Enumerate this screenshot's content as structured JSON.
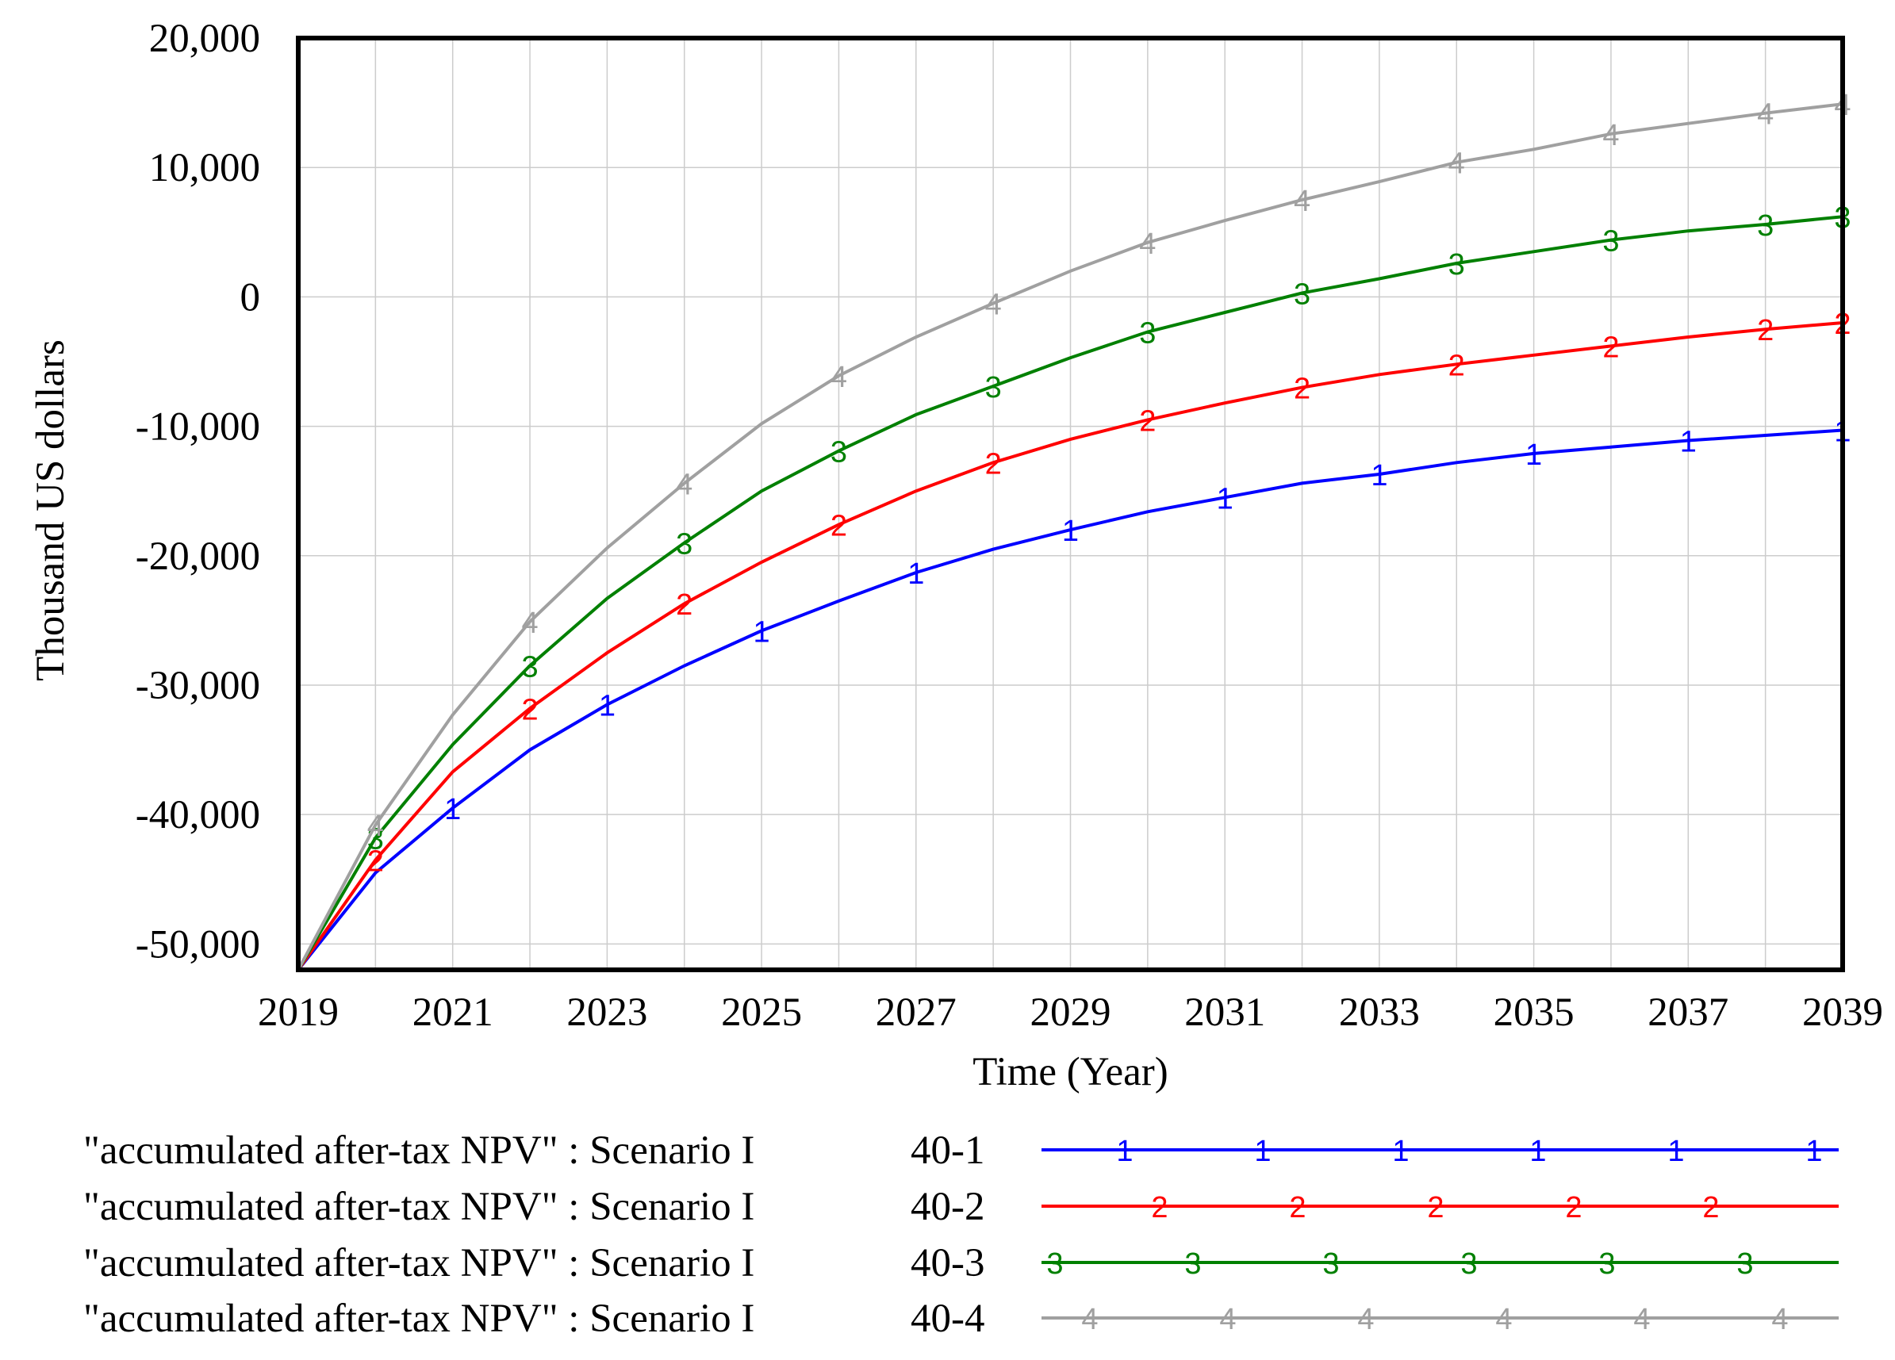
{
  "chart_data": {
    "type": "line",
    "title": "",
    "xlabel": "Time (Year)",
    "ylabel": "Thousand US dollars",
    "xlim": [
      2019,
      2039
    ],
    "ylim": [
      -52000,
      20000
    ],
    "grid": true,
    "x_ticks": [
      "2019",
      "2021",
      "2023",
      "2025",
      "2027",
      "2029",
      "2031",
      "2033",
      "2035",
      "2037",
      "2039"
    ],
    "y_ticks": [
      "20,000",
      "10,000",
      "0",
      "-10,000",
      "-20,000",
      "-30,000",
      "-40,000",
      "-50,000"
    ],
    "x": [
      2019,
      2020,
      2021,
      2022,
      2023,
      2024,
      2025,
      2026,
      2027,
      2028,
      2029,
      2030,
      2031,
      2032,
      2033,
      2034,
      2035,
      2036,
      2037,
      2038,
      2039
    ],
    "series": [
      {
        "name": "\"accumulated after-tax NPV\" : Scenario I",
        "scenario": "40-1",
        "marker": "1",
        "color": "#0000ff",
        "values": [
          -52000,
          -44500,
          -39500,
          -35000,
          -31500,
          -28500,
          -25800,
          -23500,
          -21300,
          -19500,
          -18000,
          -16600,
          -15500,
          -14400,
          -13700,
          -12800,
          -12100,
          -11600,
          -11100,
          -10700,
          -10300
        ]
      },
      {
        "name": "\"accumulated after-tax NPV\" : Scenario I",
        "scenario": "40-2",
        "marker": "2",
        "color": "#ff0000",
        "values": [
          -52000,
          -43500,
          -36700,
          -31800,
          -27500,
          -23700,
          -20500,
          -17600,
          -15000,
          -12800,
          -11000,
          -9500,
          -8200,
          -7000,
          -6000,
          -5200,
          -4500,
          -3800,
          -3100,
          -2500,
          -2000
        ]
      },
      {
        "name": "\"accumulated after-tax NPV\" : Scenario I",
        "scenario": "40-3",
        "marker": "3",
        "color": "#008000",
        "values": [
          -52000,
          -41800,
          -34600,
          -28500,
          -23300,
          -19000,
          -15000,
          -11900,
          -9100,
          -6900,
          -4700,
          -2700,
          -1200,
          300,
          1400,
          2600,
          3500,
          4400,
          5100,
          5600,
          6200
        ]
      },
      {
        "name": "\"accumulated after-tax NPV\" : Scenario I",
        "scenario": "40-4",
        "marker": "4",
        "color": "#a0a0a0",
        "values": [
          -52000,
          -40800,
          -32300,
          -25100,
          -19400,
          -14400,
          -9800,
          -6100,
          -3100,
          -500,
          2000,
          4200,
          5900,
          7500,
          8900,
          10400,
          11400,
          12600,
          13400,
          14200,
          14900
        ]
      }
    ]
  }
}
